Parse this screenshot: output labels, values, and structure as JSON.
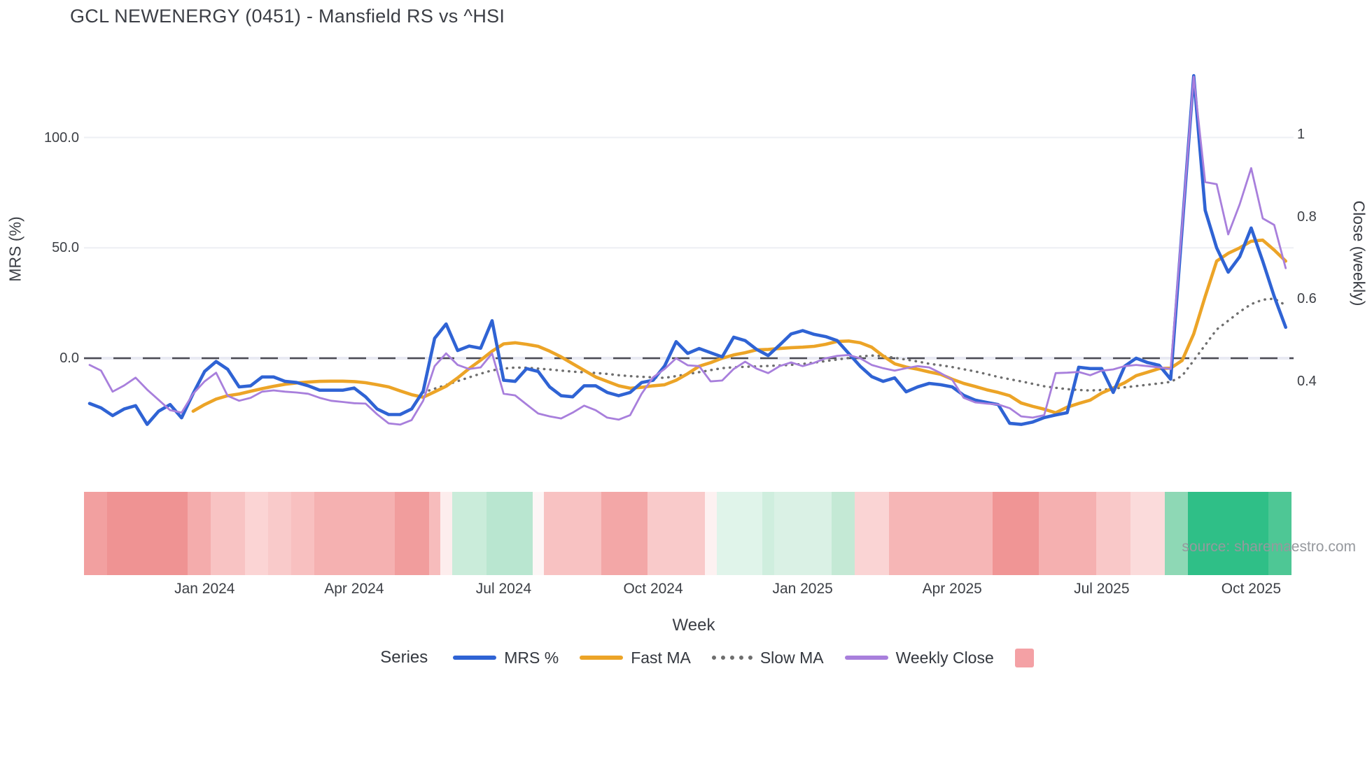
{
  "title": "GCL NEWENERGY (0451) - Mansfield RS vs ^HSI",
  "source": "source: sharemaestro.com",
  "axes": {
    "x": {
      "title": "Week",
      "ticks": [
        {
          "week": 10,
          "label": "Jan 2024"
        },
        {
          "week": 23,
          "label": "Apr 2024"
        },
        {
          "week": 36,
          "label": "Jul 2024"
        },
        {
          "week": 49,
          "label": "Oct 2024"
        },
        {
          "week": 62,
          "label": "Jan 2025"
        },
        {
          "week": 75,
          "label": "Apr 2025"
        },
        {
          "week": 88,
          "label": "Jul 2025"
        },
        {
          "week": 101,
          "label": "Oct 2025"
        }
      ]
    },
    "y_left": {
      "title": "MRS (%)",
      "ticks": [
        {
          "value": 0,
          "label": "0.0"
        },
        {
          "value": 50,
          "label": "50.0"
        },
        {
          "value": 100,
          "label": "100.0"
        }
      ]
    },
    "y_right": {
      "title": "Close (weekly)",
      "ticks": [
        {
          "value": 0.4,
          "label": "0.4"
        },
        {
          "value": 0.6,
          "label": "0.6"
        },
        {
          "value": 0.8,
          "label": "0.8"
        },
        {
          "value": 1,
          "label": "1"
        }
      ]
    }
  },
  "legend": {
    "title": "Series",
    "items": [
      {
        "label": "MRS %",
        "swatch": "line",
        "color": "#2f63d4"
      },
      {
        "label": "Fast MA",
        "swatch": "line",
        "color": "#eca427"
      },
      {
        "label": "Slow MA",
        "swatch": "dotted",
        "color": "#6e6e6e"
      },
      {
        "label": "Weekly Close",
        "swatch": "line",
        "color": "#a87fdc"
      },
      {
        "label": "",
        "swatch": "square",
        "color": "#f4a1a5"
      }
    ]
  },
  "chart_data": {
    "type": "line",
    "title": "GCL NEWENERGY (0451) - Mansfield RS vs ^HSI",
    "xlabel": "Week",
    "ylabel_left": "MRS (%)",
    "ylabel_right": "Close (weekly)",
    "x_unit": "week index, weekly samples from late Oct 2023 to early Nov 2025",
    "y_left_range_approx": [
      -35,
      135
    ],
    "y_right_range_approx": [
      0.27,
      1.15
    ],
    "grid": "horizontal only",
    "legend_position": "bottom",
    "zero_line": {
      "axis": "left",
      "value": 0,
      "style": "dashed",
      "color": "#4d4d55"
    },
    "series": [
      {
        "name": "MRS %",
        "axis": "left",
        "color": "#2f63d4",
        "style": "solid",
        "width": 4.6,
        "start_week": 0,
        "values": [
          -20.5,
          -22.5,
          -26,
          -23,
          -21.5,
          -30,
          -24,
          -21,
          -27,
          -16,
          -6,
          -1.5,
          -5,
          -13,
          -12.5,
          -8.5,
          -8.5,
          -10.5,
          -11,
          -12.5,
          -14.5,
          -14.5,
          -14.5,
          -13.5,
          -17.5,
          -23,
          -25.5,
          -25.5,
          -23,
          -15,
          9,
          15.5,
          3.5,
          5.5,
          4.5,
          17,
          -10,
          -10.5,
          -4.7,
          -6,
          -13,
          -17,
          -17.5,
          -12.5,
          -12.5,
          -15.5,
          -17,
          -15.5,
          -11,
          -10,
          -3.5,
          7.5,
          2.2,
          4.4,
          2.5,
          0.6,
          9.5,
          8,
          4,
          1.2,
          6,
          11,
          12.5,
          10.8,
          9.8,
          8,
          2.2,
          -3.6,
          -8.3,
          -10.5,
          -8.9,
          -15.2,
          -13,
          -11.4,
          -12,
          -13,
          -16.8,
          -19,
          -20,
          -21,
          -29.5,
          -30,
          -28.9,
          -26.9,
          -25.7,
          -24.7,
          -4.1,
          -4.7,
          -4.7,
          -15.5,
          -3.6,
          0,
          -2,
          -3.2,
          -9.5,
          59,
          128,
          67,
          50,
          39,
          46,
          59,
          44,
          28,
          14
        ]
      },
      {
        "name": "Fast MA",
        "axis": "left",
        "color": "#eca427",
        "style": "solid",
        "width": 4.6,
        "start_week": 9,
        "values": [
          -24,
          -21,
          -18.5,
          -17,
          -16.2,
          -15,
          -13.8,
          -12.7,
          -11.8,
          -11.2,
          -10.8,
          -10.5,
          -10.4,
          -10.4,
          -10.6,
          -11.1,
          -12,
          -13,
          -14.8,
          -16.5,
          -17.7,
          -15.2,
          -12.7,
          -8.9,
          -4.7,
          -0.9,
          3.2,
          6.5,
          7,
          6.3,
          5.4,
          3.2,
          0.6,
          -2.5,
          -5.5,
          -8.5,
          -10.5,
          -12.5,
          -13.6,
          -13.2,
          -12.5,
          -12,
          -10,
          -7,
          -3.6,
          -2,
          0,
          1.5,
          2.5,
          3.8,
          4,
          4.4,
          4.8,
          5,
          5.4,
          6.3,
          7.6,
          7.8,
          7,
          5,
          1,
          -2.5,
          -4,
          -5,
          -6.2,
          -7.3,
          -9.5,
          -11.4,
          -12.8,
          -14.3,
          -15.5,
          -17,
          -20.3,
          -21.8,
          -23.1,
          -24.7,
          -22.2,
          -20.5,
          -19,
          -15.8,
          -13.5,
          -11.1,
          -7.9,
          -6.3,
          -4.7,
          -4.5,
          -1,
          11,
          28,
          44,
          47.5,
          50,
          53,
          53.5,
          49,
          44
        ]
      },
      {
        "name": "Slow MA",
        "axis": "left",
        "color": "#6e6e6e",
        "style": "dotted",
        "width": 3.4,
        "start_week": 29,
        "values": [
          -15.5,
          -13.8,
          -12.1,
          -10.4,
          -8.7,
          -7,
          -5.5,
          -4.7,
          -4.2,
          -4.3,
          -4.7,
          -5.1,
          -5.6,
          -6.1,
          -6.4,
          -6.7,
          -7.1,
          -7.7,
          -8.1,
          -8.4,
          -8.7,
          -8.9,
          -8.1,
          -7.2,
          -6.3,
          -5.4,
          -4.5,
          -4.1,
          -3.9,
          -3.7,
          -3.5,
          -3.3,
          -3,
          -2.6,
          -2,
          -1.3,
          -0.6,
          0.1,
          0.8,
          1.2,
          1,
          0.2,
          -0.6,
          -1.5,
          -2.5,
          -3.2,
          -4,
          -5,
          -6,
          -7.2,
          -8.5,
          -9.5,
          -10.5,
          -11.6,
          -12.7,
          -13.4,
          -14,
          -14.4,
          -14.6,
          -14.4,
          -13.8,
          -13.2,
          -12.6,
          -12,
          -11.4,
          -10.7,
          -8,
          -1,
          6,
          13,
          17,
          21,
          24.5,
          26.5,
          27,
          24
        ]
      },
      {
        "name": "Weekly Close",
        "axis": "right",
        "color": "#a87fdc",
        "style": "solid",
        "width": 2.8,
        "start_week": 0,
        "values": [
          0.44,
          0.426,
          0.375,
          0.39,
          0.409,
          0.38,
          0.355,
          0.33,
          0.324,
          0.37,
          0.4,
          0.421,
          0.365,
          0.353,
          0.36,
          0.375,
          0.378,
          0.375,
          0.373,
          0.37,
          0.36,
          0.353,
          0.35,
          0.347,
          0.346,
          0.32,
          0.298,
          0.295,
          0.306,
          0.353,
          0.437,
          0.468,
          0.44,
          0.43,
          0.434,
          0.468,
          0.37,
          0.366,
          0.344,
          0.322,
          0.315,
          0.31,
          0.324,
          0.341,
          0.33,
          0.312,
          0.307,
          0.318,
          0.37,
          0.41,
          0.43,
          0.456,
          0.439,
          0.437,
          0.4,
          0.402,
          0.43,
          0.448,
          0.431,
          0.42,
          0.437,
          0.446,
          0.437,
          0.445,
          0.456,
          0.462,
          0.464,
          0.456,
          0.44,
          0.432,
          0.426,
          0.432,
          0.437,
          0.434,
          0.42,
          0.404,
          0.36,
          0.349,
          0.346,
          0.344,
          0.335,
          0.315,
          0.312,
          0.318,
          0.42,
          0.421,
          0.423,
          0.415,
          0.426,
          0.429,
          0.437,
          0.44,
          0.437,
          0.434,
          0.43,
          0.78,
          1.14,
          0.884,
          0.879,
          0.757,
          0.83,
          0.918,
          0.796,
          0.78,
          0.675
        ]
      }
    ],
    "heatmap_strip": {
      "description": "weekly heat band below plot, red = weak relative strength, green = strong",
      "runs": [
        {
          "weeks": 2,
          "color": "#f2a0a0"
        },
        {
          "weeks": 7,
          "color": "#ef9393"
        },
        {
          "weeks": 2,
          "color": "#f4acac"
        },
        {
          "weeks": 3,
          "color": "#f8c3c3"
        },
        {
          "weeks": 2,
          "color": "#fbd4d4"
        },
        {
          "weeks": 2,
          "color": "#f9caca"
        },
        {
          "weeks": 2,
          "color": "#f8c0c0"
        },
        {
          "weeks": 7,
          "color": "#f5b1b1"
        },
        {
          "weeks": 3,
          "color": "#f19d9d"
        },
        {
          "weeks": 1,
          "color": "#f7bcbc"
        },
        {
          "weeks": 1,
          "color": "#fdeded"
        },
        {
          "weeks": 3,
          "color": "#caecda"
        },
        {
          "weeks": 4,
          "color": "#b9e6d0"
        },
        {
          "weeks": 1,
          "color": "#fdf6f6"
        },
        {
          "weeks": 5,
          "color": "#f8c2c2"
        },
        {
          "weeks": 4,
          "color": "#f3a7a7"
        },
        {
          "weeks": 5,
          "color": "#f9caca"
        },
        {
          "weeks": 1,
          "color": "#fdf1f1"
        },
        {
          "weeks": 4,
          "color": "#e0f4ea"
        },
        {
          "weeks": 1,
          "color": "#cfeede"
        },
        {
          "weeks": 5,
          "color": "#daf1e5"
        },
        {
          "weeks": 2,
          "color": "#c4e9d5"
        },
        {
          "weeks": 3,
          "color": "#fad4d4"
        },
        {
          "weeks": 9,
          "color": "#f6b6b6"
        },
        {
          "weeks": 4,
          "color": "#f09595"
        },
        {
          "weeks": 5,
          "color": "#f5b0b0"
        },
        {
          "weeks": 3,
          "color": "#f9c8c8"
        },
        {
          "weeks": 3,
          "color": "#fbdbdb"
        },
        {
          "weeks": 2,
          "color": "#8ed8b5"
        },
        {
          "weeks": 7,
          "color": "#2fbf87"
        },
        {
          "weeks": 2,
          "color": "#4ec795"
        }
      ]
    },
    "colors": {
      "grid": "#edeff4",
      "zero_band": "#e9eaf3",
      "zero_dash": "#4d4d55",
      "text": "#3b3e45",
      "muted_text": "#96999e"
    }
  }
}
